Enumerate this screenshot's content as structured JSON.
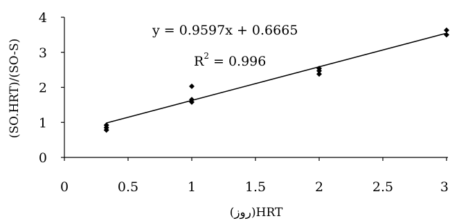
{
  "chart_data": {
    "type": "scatter",
    "title": "",
    "xlabel": "(روز)HRT",
    "ylabel": "(SO.HRT)/(SO-S)",
    "xlim": [
      0,
      3
    ],
    "ylim": [
      0,
      4
    ],
    "x_ticks": [
      "0",
      "0.5",
      "1",
      "1.5",
      "2",
      "2.5",
      "3"
    ],
    "y_ticks": [
      "0",
      "1",
      "2",
      "3",
      "4"
    ],
    "grid": false,
    "legend": "none",
    "series": [
      {
        "points": [
          {
            "x": 0.33,
            "y": 0.78
          },
          {
            "x": 0.33,
            "y": 0.85
          },
          {
            "x": 0.33,
            "y": 0.92
          },
          {
            "x": 1,
            "y": 1.58
          },
          {
            "x": 1,
            "y": 1.65
          },
          {
            "x": 1,
            "y": 2.03
          },
          {
            "x": 2,
            "y": 2.38
          },
          {
            "x": 2,
            "y": 2.47
          },
          {
            "x": 2,
            "y": 2.54
          },
          {
            "x": 3,
            "y": 3.5
          },
          {
            "x": 3,
            "y": 3.63
          }
        ]
      }
    ],
    "trendline": {
      "slope": 0.9597,
      "intercept": 0.6665,
      "x_range": [
        0.33,
        3
      ]
    },
    "annotations": {
      "equation": "y = 0.9597x + 0.6665",
      "r2_prefix": "R",
      "r2_sup": "2",
      "r2_suffix": " = 0.996"
    }
  },
  "colors": {
    "marker": "#000000",
    "line": "#000000",
    "axis": "#000000"
  }
}
